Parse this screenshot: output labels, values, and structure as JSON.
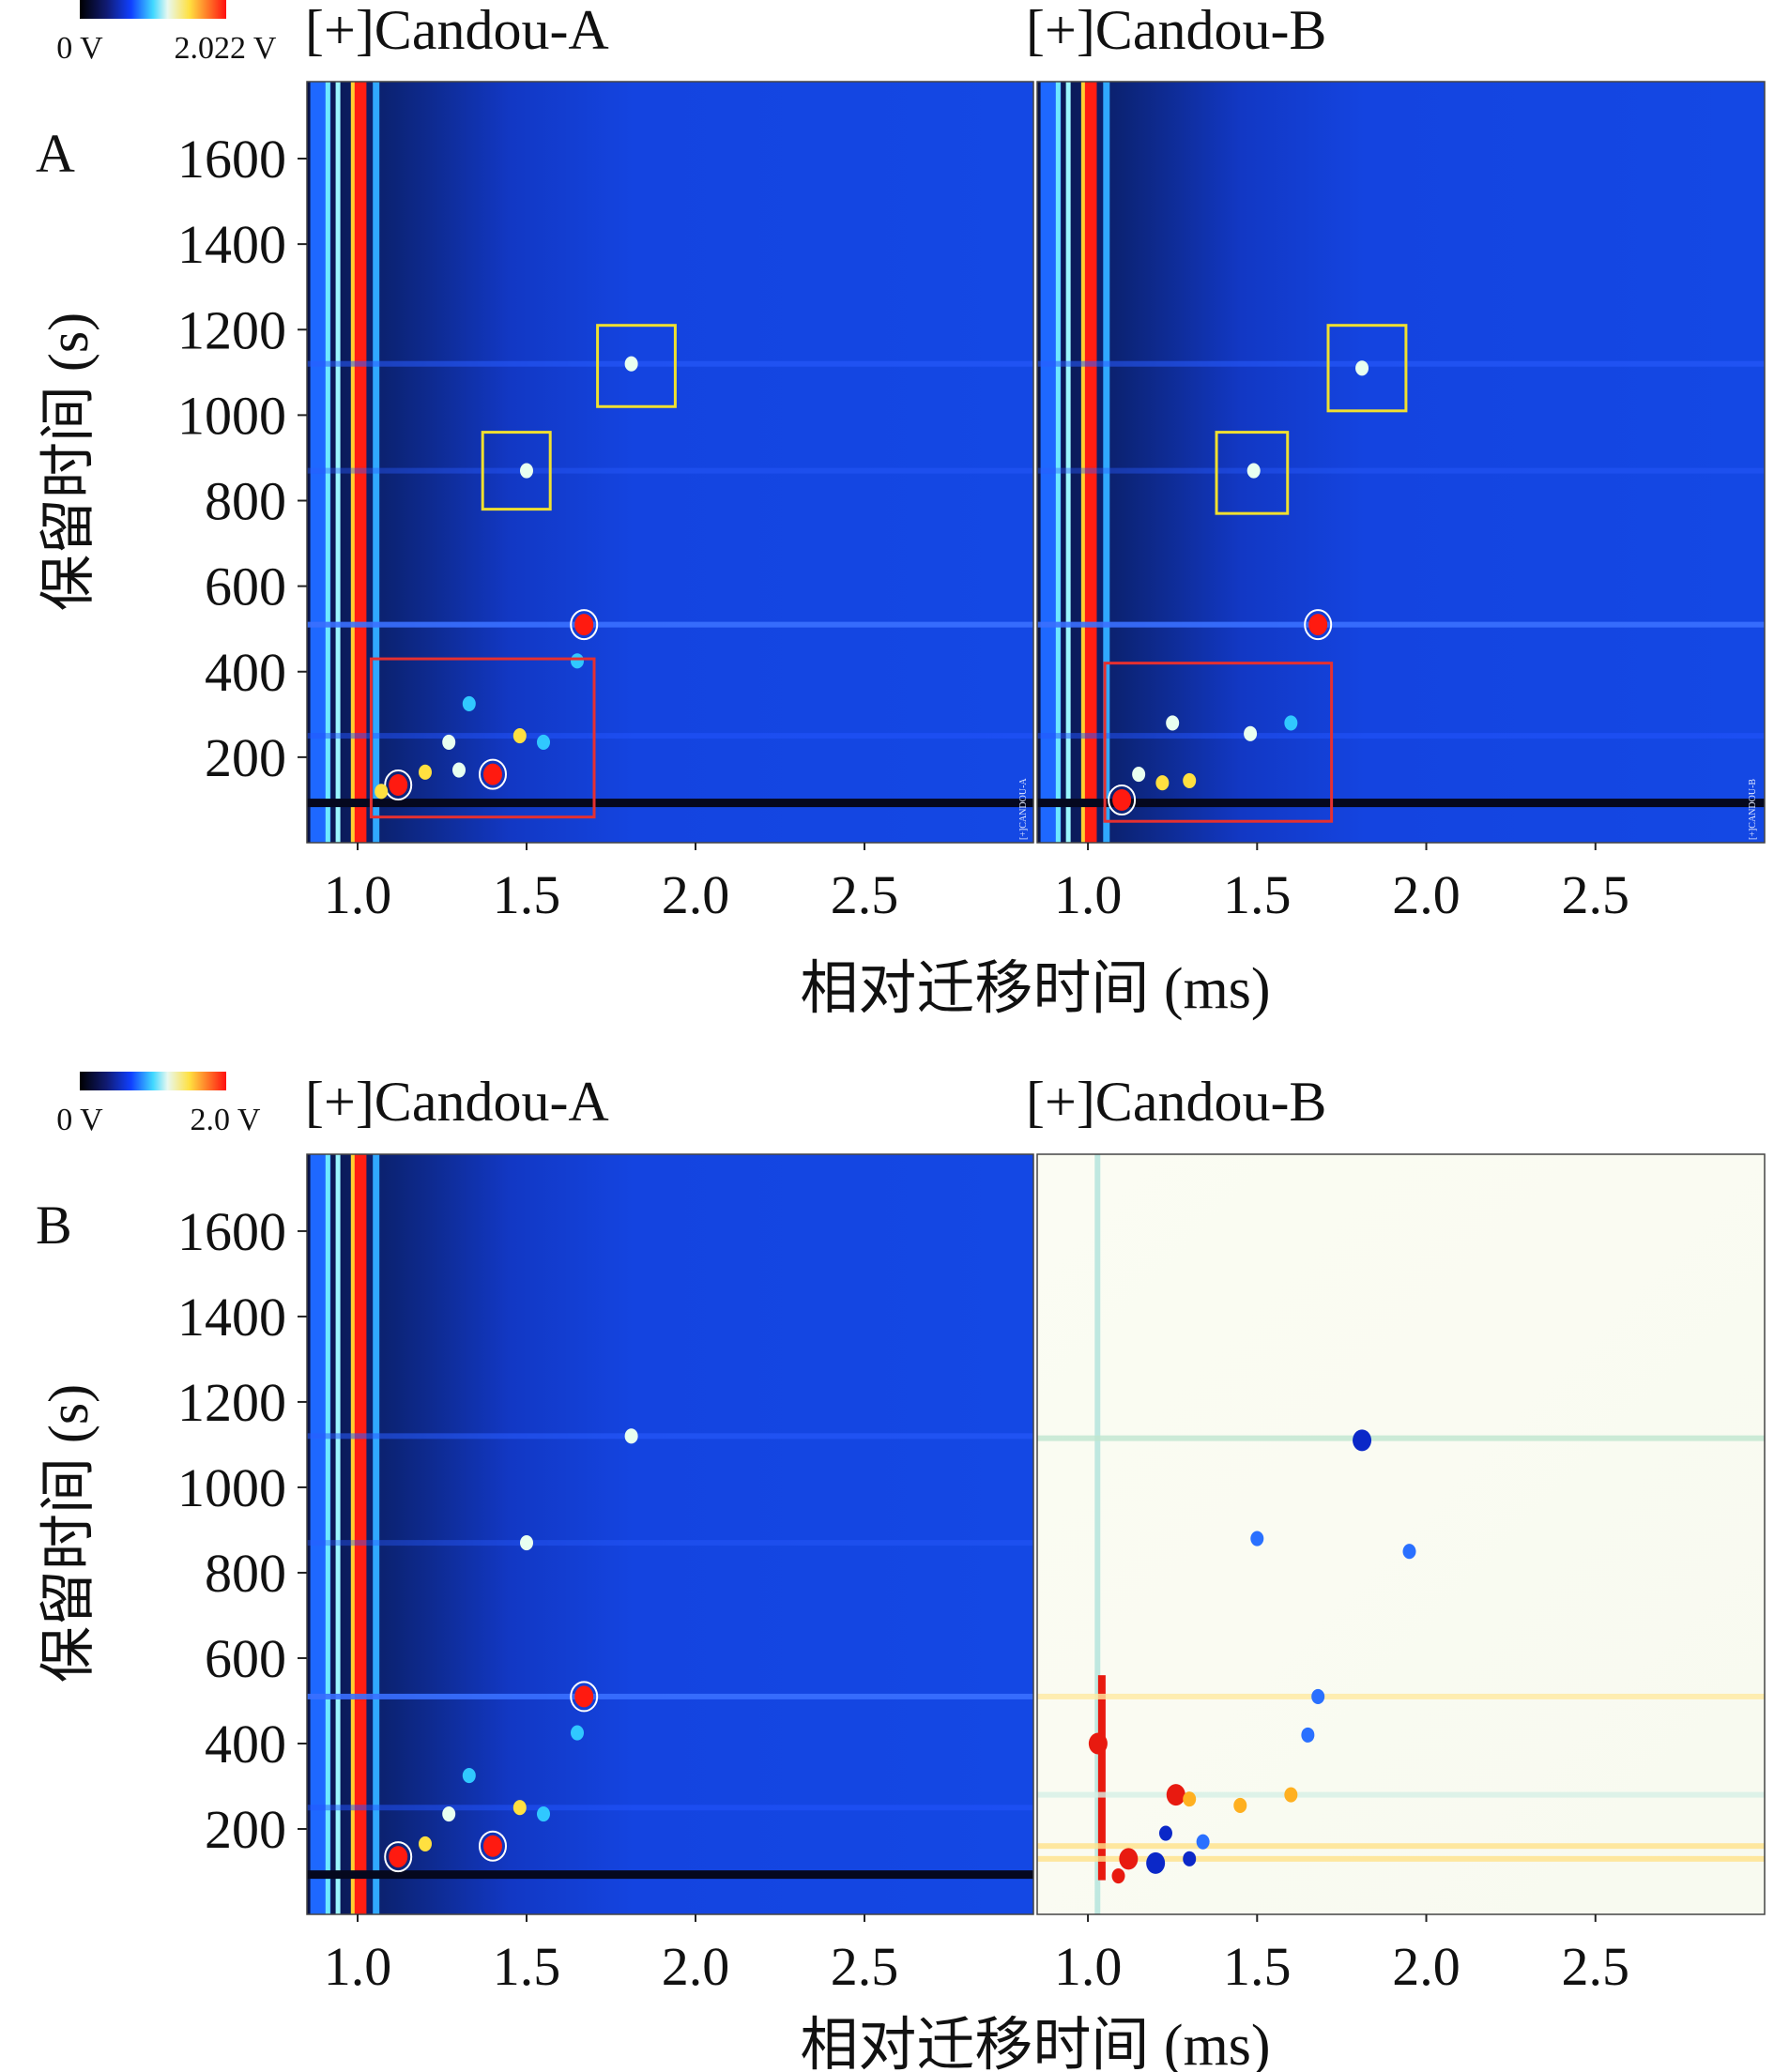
{
  "figure": {
    "panels": [
      {
        "letter": "A",
        "colorbar": {
          "min_label": "0 V",
          "max_label": "2.022 V"
        },
        "subplot_titles": [
          "[+]Candou-A",
          "[+]Candou-B"
        ],
        "ylabel": "保留时间 (s)",
        "xlabel": "相对迁移时间 (ms)",
        "watermarks": [
          "[+]CANDOU-A",
          "[+]CANDOU-B"
        ]
      },
      {
        "letter": "B",
        "colorbar": {
          "min_label": "0 V",
          "max_label": "2.0 V"
        },
        "subplot_titles": [
          "[+]Candou-A",
          "[+]Candou-B"
        ],
        "ylabel": "保留时间 (s)",
        "xlabel": "相对迁移时间 (ms)"
      }
    ]
  },
  "chart_data": [
    {
      "type": "heatmap",
      "title": "[+]Candou-A",
      "xlabel": "相对迁移时间 (ms)",
      "ylabel": "保留时间 (s)",
      "x_ticks": [
        1.0,
        1.5,
        2.0,
        2.5
      ],
      "y_ticks": [
        200,
        400,
        600,
        800,
        1000,
        1200,
        1400,
        1600
      ],
      "xlim": [
        0.85,
        3.0
      ],
      "ylim": [
        0,
        1780
      ],
      "colorscale": {
        "min": 0,
        "max": 2.022,
        "unit": "V"
      },
      "highlight_boxes": [
        {
          "color": "#f0e030",
          "x": [
            1.37,
            1.57
          ],
          "y": [
            780,
            960
          ]
        },
        {
          "color": "#f0e030",
          "x": [
            1.71,
            1.94
          ],
          "y": [
            1020,
            1210
          ]
        },
        {
          "color": "#e53030",
          "x": [
            1.04,
            1.7
          ],
          "y": [
            60,
            430
          ]
        }
      ],
      "peaks": [
        {
          "x": 1.5,
          "y": 870,
          "v": 0.8
        },
        {
          "x": 1.81,
          "y": 1120,
          "v": 0.9
        },
        {
          "x": 1.67,
          "y": 510,
          "v": 2.0
        },
        {
          "x": 1.65,
          "y": 425,
          "v": 0.6
        },
        {
          "x": 1.48,
          "y": 250,
          "v": 1.2
        },
        {
          "x": 1.55,
          "y": 235,
          "v": 0.5
        },
        {
          "x": 1.27,
          "y": 235,
          "v": 0.9
        },
        {
          "x": 1.33,
          "y": 325,
          "v": 0.5
        },
        {
          "x": 1.4,
          "y": 160,
          "v": 1.8
        },
        {
          "x": 1.3,
          "y": 170,
          "v": 1.0
        },
        {
          "x": 1.2,
          "y": 165,
          "v": 1.2
        },
        {
          "x": 1.12,
          "y": 135,
          "v": 1.6
        },
        {
          "x": 1.07,
          "y": 120,
          "v": 1.4
        }
      ]
    },
    {
      "type": "heatmap",
      "title": "[+]Candou-B",
      "xlabel": "相对迁移时间 (ms)",
      "ylabel": "保留时间 (s)",
      "x_ticks": [
        1.0,
        1.5,
        2.0,
        2.5
      ],
      "y_ticks": [
        200,
        400,
        600,
        800,
        1000,
        1200,
        1400,
        1600
      ],
      "xlim": [
        0.85,
        3.0
      ],
      "ylim": [
        0,
        1780
      ],
      "colorscale": {
        "min": 0,
        "max": 2.022,
        "unit": "V"
      },
      "highlight_boxes": [
        {
          "color": "#f0e030",
          "x": [
            1.38,
            1.59
          ],
          "y": [
            770,
            960
          ]
        },
        {
          "color": "#f0e030",
          "x": [
            1.71,
            1.94
          ],
          "y": [
            1010,
            1210
          ]
        },
        {
          "color": "#e53030",
          "x": [
            1.05,
            1.72
          ],
          "y": [
            50,
            420
          ]
        }
      ],
      "peaks": [
        {
          "x": 1.49,
          "y": 870,
          "v": 0.7
        },
        {
          "x": 1.81,
          "y": 1110,
          "v": 0.7
        },
        {
          "x": 1.68,
          "y": 510,
          "v": 2.0
        },
        {
          "x": 1.48,
          "y": 255,
          "v": 1.0
        },
        {
          "x": 1.6,
          "y": 280,
          "v": 0.6
        },
        {
          "x": 1.25,
          "y": 280,
          "v": 0.9
        },
        {
          "x": 1.3,
          "y": 145,
          "v": 1.3
        },
        {
          "x": 1.22,
          "y": 140,
          "v": 1.4
        },
        {
          "x": 1.15,
          "y": 160,
          "v": 1.0
        },
        {
          "x": 1.1,
          "y": 100,
          "v": 1.8
        }
      ]
    },
    {
      "type": "heatmap",
      "title": "[+]Candou-A",
      "xlabel": "相对迁移时间 (ms)",
      "ylabel": "保留时间 (s)",
      "x_ticks": [
        1.0,
        1.5,
        2.0,
        2.5
      ],
      "y_ticks": [
        200,
        400,
        600,
        800,
        1000,
        1200,
        1400,
        1600
      ],
      "xlim": [
        0.85,
        3.0
      ],
      "ylim": [
        0,
        1780
      ],
      "colorscale": {
        "min": 0,
        "max": 2.0,
        "unit": "V"
      },
      "peaks": [
        {
          "x": 1.5,
          "y": 870,
          "v": 0.8
        },
        {
          "x": 1.81,
          "y": 1120,
          "v": 0.9
        },
        {
          "x": 1.67,
          "y": 510,
          "v": 2.0
        },
        {
          "x": 1.65,
          "y": 425,
          "v": 0.6
        },
        {
          "x": 1.48,
          "y": 250,
          "v": 1.2
        },
        {
          "x": 1.55,
          "y": 235,
          "v": 0.5
        },
        {
          "x": 1.27,
          "y": 235,
          "v": 0.9
        },
        {
          "x": 1.33,
          "y": 325,
          "v": 0.5
        },
        {
          "x": 1.4,
          "y": 160,
          "v": 1.8
        },
        {
          "x": 1.2,
          "y": 165,
          "v": 1.2
        },
        {
          "x": 1.12,
          "y": 135,
          "v": 1.6
        }
      ]
    },
    {
      "type": "heatmap",
      "title": "[+]Candou-B",
      "xlabel": "相对迁移时间 (ms)",
      "ylabel": "保留时间 (s)",
      "x_ticks": [
        1.0,
        1.5,
        2.0,
        2.5
      ],
      "y_ticks": [
        200,
        400,
        600,
        800,
        1000,
        1200,
        1400,
        1600
      ],
      "xlim": [
        0.85,
        3.0
      ],
      "ylim": [
        0,
        1780
      ],
      "colorscale": {
        "min": -2.0,
        "max": 2.0,
        "unit": "V",
        "mode": "difference"
      },
      "peaks": [
        {
          "x": 1.81,
          "y": 1110,
          "v": -1.6
        },
        {
          "x": 1.68,
          "y": 510,
          "v": -1.2
        },
        {
          "x": 1.65,
          "y": 420,
          "v": -0.8
        },
        {
          "x": 1.03,
          "y": 400,
          "v": 2.0
        },
        {
          "x": 1.26,
          "y": 280,
          "v": 1.6
        },
        {
          "x": 1.3,
          "y": 270,
          "v": 1.2
        },
        {
          "x": 1.45,
          "y": 255,
          "v": 1.0
        },
        {
          "x": 1.6,
          "y": 280,
          "v": 1.2
        },
        {
          "x": 1.23,
          "y": 190,
          "v": -1.4
        },
        {
          "x": 1.34,
          "y": 170,
          "v": -1.0
        },
        {
          "x": 1.12,
          "y": 130,
          "v": 1.8
        },
        {
          "x": 1.2,
          "y": 120,
          "v": -1.6
        },
        {
          "x": 1.3,
          "y": 130,
          "v": -1.4
        },
        {
          "x": 1.09,
          "y": 90,
          "v": 1.5
        },
        {
          "x": 1.5,
          "y": 880,
          "v": -0.3
        },
        {
          "x": 1.95,
          "y": 850,
          "v": -0.3
        }
      ]
    }
  ]
}
